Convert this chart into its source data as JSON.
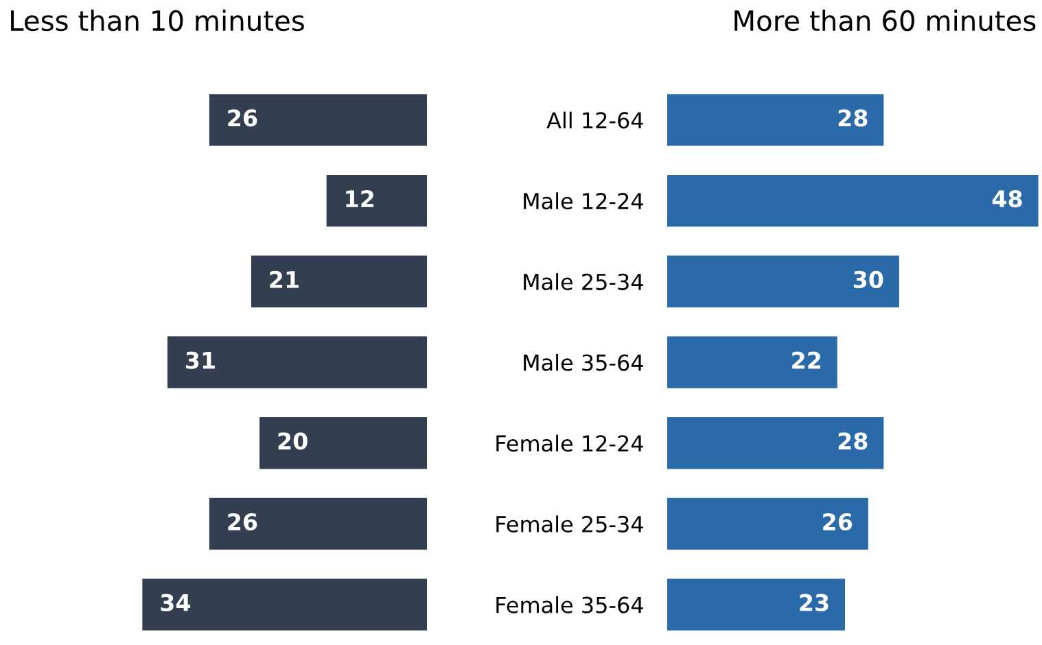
{
  "chart_data": [
    {
      "type": "bar",
      "orientation": "horizontal",
      "title": "Less than 10 minutes",
      "categories": [
        "All 12-64",
        "Male 12-24",
        "Male 25-34",
        "Male 35-64",
        "Female 12-24",
        "Female 25-34",
        "Female 35-64"
      ],
      "values": [
        26,
        12,
        21,
        31,
        20,
        26,
        34
      ],
      "color": "#333f50",
      "data_labels": true,
      "tick_labels": "y"
    },
    {
      "type": "bar",
      "orientation": "horizontal",
      "title": "More than 60 minutes",
      "categories": [
        null,
        null,
        null,
        null,
        null,
        null,
        null
      ],
      "values": [
        28,
        48,
        30,
        22,
        28,
        26,
        23
      ],
      "color": "#2a6aa8",
      "data_labels": true,
      "tick_labels": false
    }
  ]
}
